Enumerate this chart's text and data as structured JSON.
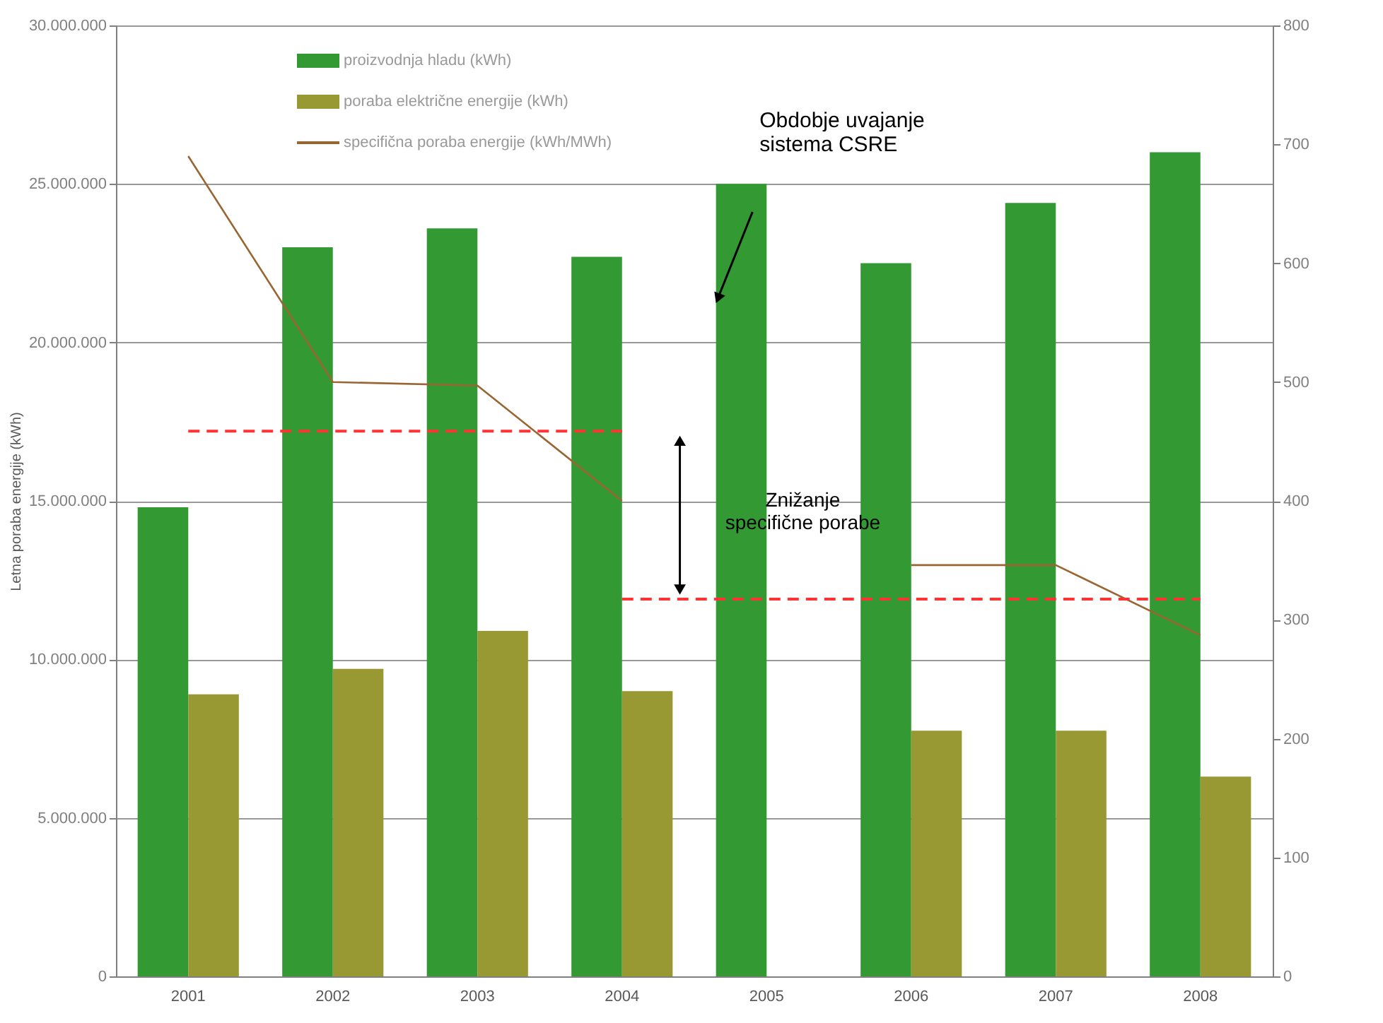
{
  "chart_data": {
    "type": "bar",
    "ylabel": "Letna poraba energije (kWh)",
    "categories": [
      "2001",
      "2002",
      "2003",
      "2004",
      "2005",
      "2006",
      "2007",
      "2008"
    ],
    "series": [
      {
        "name": "proizvodnja hladu (kWh)",
        "color": "#339933",
        "values": [
          14800000,
          23000000,
          23600000,
          22700000,
          25000000,
          22500000,
          24400000,
          26000000
        ]
      },
      {
        "name": "poraba električne energije (kWh)",
        "color": "#999933",
        "values": [
          8900000,
          9700000,
          10900000,
          9000000,
          null,
          7750000,
          7750000,
          6300000
        ]
      },
      {
        "name": "specifična poraba energije (kWh/MWh)",
        "type": "line",
        "axis": "y2",
        "color": "#996633",
        "line_style": "solid",
        "values": [
          690,
          500,
          497,
          400,
          null,
          346,
          346,
          287
        ]
      },
      {
        "type": "line",
        "axis": "y",
        "color": "#ff3333",
        "line_style": "dashed",
        "values": [
          17200000,
          17200000,
          17200000,
          17200000,
          null,
          null,
          null,
          null
        ]
      },
      {
        "type": "line",
        "axis": "y",
        "color": "#ff3333",
        "line_style": "dashed",
        "values": [
          null,
          null,
          null,
          11900000,
          11900000,
          11900000,
          11900000,
          11900000
        ]
      }
    ],
    "ylim": [
      0,
      30000000
    ],
    "yticks": [
      {
        "value": 0,
        "label": "0"
      },
      {
        "value": 5000000,
        "label": "5.000.000"
      },
      {
        "value": 10000000,
        "label": "10.000.000"
      },
      {
        "value": 15000000,
        "label": "15.000.000"
      },
      {
        "value": 20000000,
        "label": "20.000.000"
      },
      {
        "value": 25000000,
        "label": "25.000.000"
      },
      {
        "value": 30000000,
        "label": "30.000.000"
      }
    ],
    "y2lim": [
      0,
      800
    ],
    "y2ticks": [
      0,
      100,
      200,
      300,
      400,
      500,
      600,
      700,
      800
    ],
    "grid": "y",
    "legend": "top left",
    "annotations": [
      "Obdobje uvajanje\nsistema CSRE",
      "Znižanje\nspecifične porabe"
    ]
  }
}
